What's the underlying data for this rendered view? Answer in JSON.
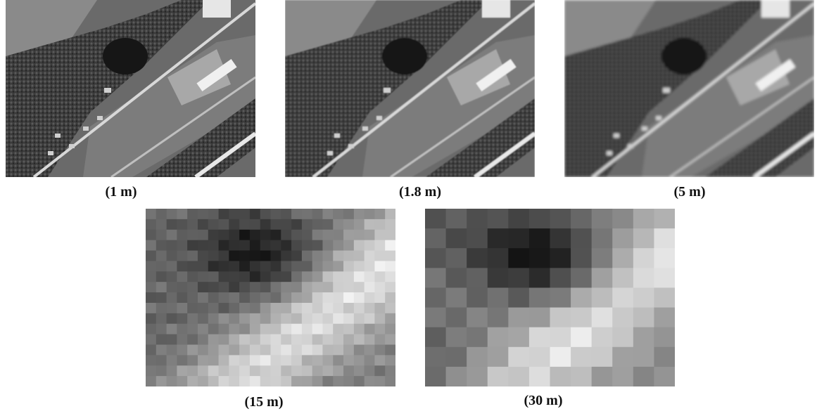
{
  "figure": {
    "labels": [
      "(1 m)",
      "(1.8 m)",
      "(5 m)",
      "(15 m)",
      "(30 m)"
    ]
  }
}
